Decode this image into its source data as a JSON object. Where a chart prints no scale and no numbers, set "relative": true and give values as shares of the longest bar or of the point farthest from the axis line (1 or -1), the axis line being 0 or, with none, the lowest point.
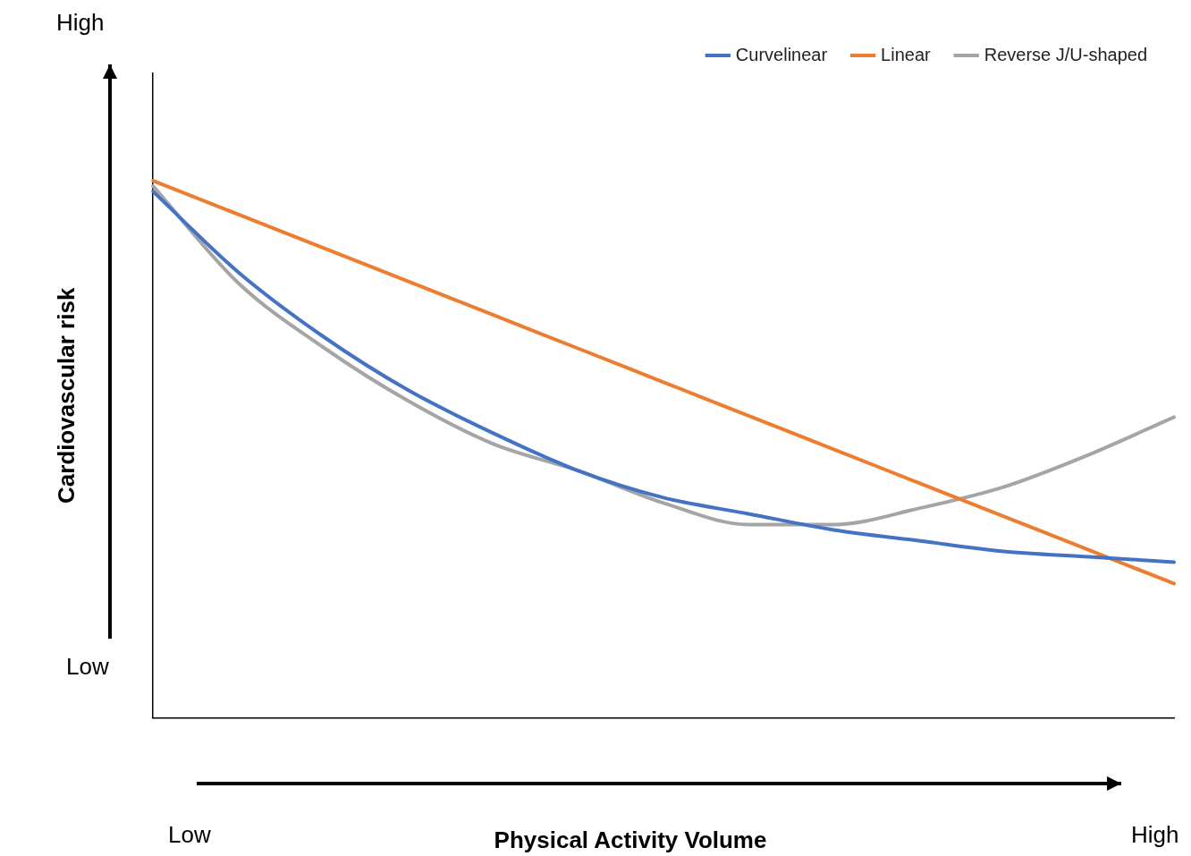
{
  "chart_data": {
    "type": "line",
    "relative": true,
    "xlabel": "Physical Activity Volume",
    "ylabel": "Cardiovascular risk",
    "annotations": [
      "High",
      "Low",
      "Low",
      "High"
    ],
    "categories": [
      null,
      null,
      null,
      null,
      null,
      null,
      null,
      null,
      null,
      null,
      null,
      null,
      null
    ],
    "legend": "top right",
    "grid": false,
    "marker": "none",
    "line_style": "solid",
    "series": [
      {
        "name": "Curvelinear",
        "color": "#4472c4",
        "values": [
          0.98,
          0.83,
          0.71,
          0.61,
          0.53,
          0.46,
          0.41,
          0.38,
          0.35,
          0.33,
          0.31,
          0.3,
          0.29
        ]
      },
      {
        "name": "Linear",
        "color": "#ed7d31",
        "values": [
          1,
          0.9375,
          0.875,
          0.8125,
          0.75,
          0.6875,
          0.625,
          0.5625,
          0.5,
          0.4375,
          0.375,
          0.3125,
          0.25
        ]
      },
      {
        "name": "Reverse J/U-shaped",
        "color": "#a5a5a5",
        "values": [
          0.99,
          0.81,
          0.69,
          0.59,
          0.51,
          0.46,
          0.4,
          0.36,
          0.36,
          0.39,
          0.43,
          0.49,
          0.56
        ]
      }
    ]
  }
}
